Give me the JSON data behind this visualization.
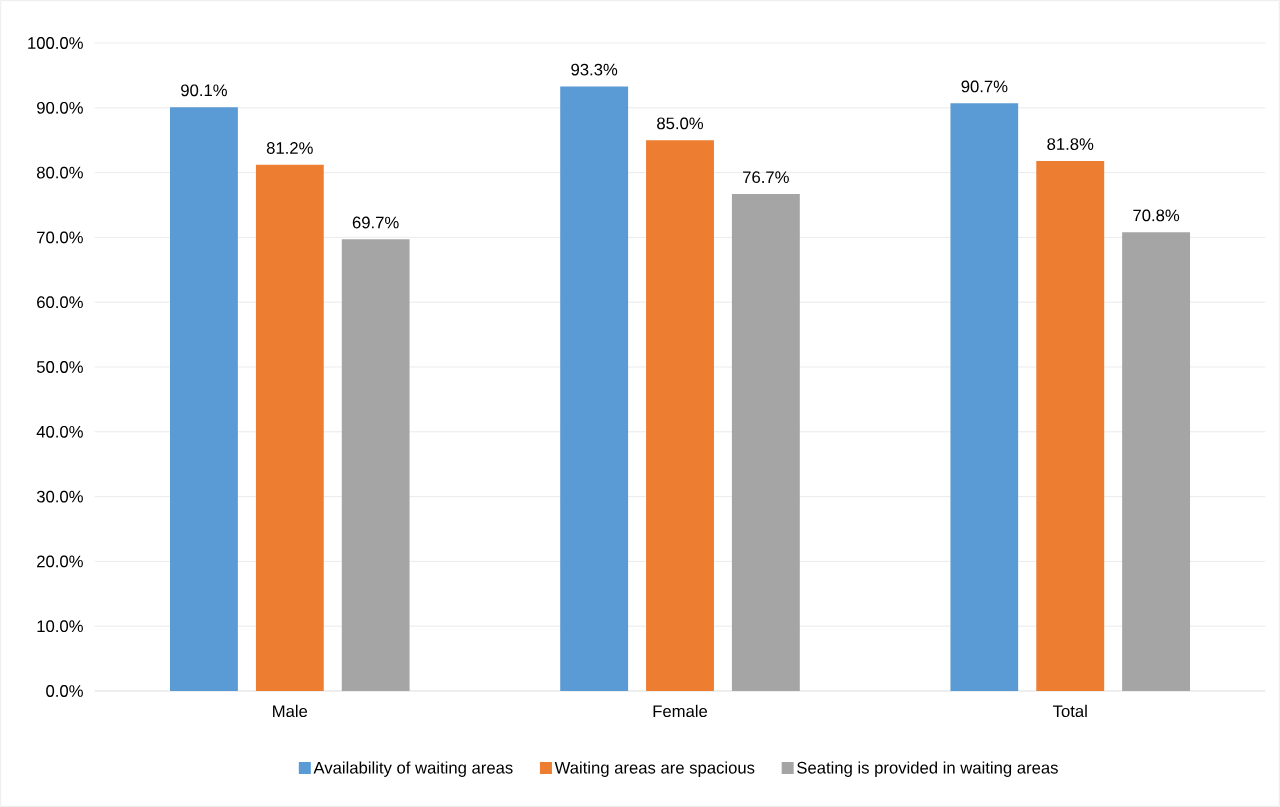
{
  "chart_data": {
    "type": "bar",
    "categories": [
      "Male",
      "Female",
      "Total"
    ],
    "series": [
      {
        "name": "Availability of waiting areas",
        "color": "#5b9bd5",
        "values": [
          90.1,
          93.3,
          90.7
        ],
        "value_labels": [
          "90.1%",
          "93.3%",
          "90.7%"
        ]
      },
      {
        "name": "Waiting areas are spacious",
        "color": "#ed7d31",
        "values": [
          81.2,
          85.0,
          81.8
        ],
        "value_labels": [
          "81.2%",
          "85.0%",
          "81.8%"
        ]
      },
      {
        "name": "Seating is provided in waiting areas",
        "color": "#a5a5a5",
        "values": [
          69.7,
          76.7,
          70.8
        ],
        "value_labels": [
          "69.7%",
          "76.7%",
          "70.8%"
        ]
      }
    ],
    "ylim": [
      0,
      100
    ],
    "yticks": [
      {
        "value": 0,
        "label": "0.0%"
      },
      {
        "value": 10,
        "label": "10.0%"
      },
      {
        "value": 20,
        "label": "20.0%"
      },
      {
        "value": 30,
        "label": "30.0%"
      },
      {
        "value": 40,
        "label": "40.0%"
      },
      {
        "value": 50,
        "label": "50.0%"
      },
      {
        "value": 60,
        "label": "60.0%"
      },
      {
        "value": 70,
        "label": "70.0%"
      },
      {
        "value": 80,
        "label": "80.0%"
      },
      {
        "value": 90,
        "label": "90.0%"
      },
      {
        "value": 100,
        "label": "100.0%"
      }
    ],
    "grid": "y",
    "legend": "bottom"
  }
}
